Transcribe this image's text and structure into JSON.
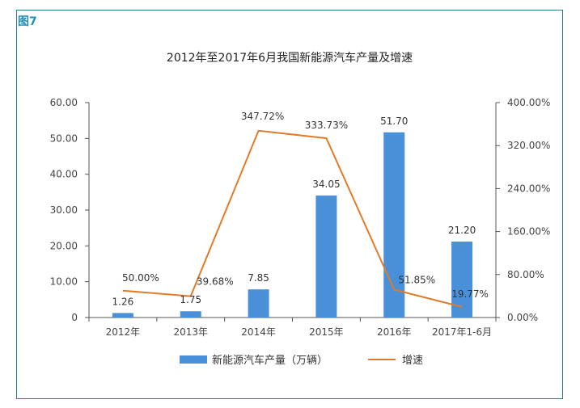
{
  "figure_label": "图7",
  "chart_data": {
    "type": "bar",
    "title": "2012年至2017年6月我国新能源汽车产量及增速",
    "categories": [
      "2012年",
      "2013年",
      "2014年",
      "2015年",
      "2016年",
      "2017年1-6月"
    ],
    "series": [
      {
        "name": "新能源汽车产量（万辆）",
        "type": "bar",
        "axis": "left",
        "color": "#4a90d9",
        "values": [
          1.26,
          1.75,
          7.85,
          34.05,
          51.7,
          21.2
        ],
        "labels": [
          "1.26",
          "1.75",
          "7.85",
          "34.05",
          "51.70",
          "21.20"
        ]
      },
      {
        "name": "增速",
        "type": "line",
        "axis": "right",
        "color": "#e07b2a",
        "values": [
          50.0,
          39.68,
          347.72,
          333.73,
          51.85,
          19.77
        ],
        "labels": [
          "50.00%",
          "39.68%",
          "347.72%",
          "333.73%",
          "51.85%",
          "19.77%"
        ]
      }
    ],
    "y_left": {
      "ylim": [
        0,
        60
      ],
      "ticks": [
        "0",
        "10.00",
        "20.00",
        "30.00",
        "40.00",
        "50.00",
        "60.00"
      ]
    },
    "y_right": {
      "ylim": [
        0,
        400
      ],
      "ticks": [
        "0.00%",
        "80.00%",
        "160.00%",
        "240.00%",
        "320.00%",
        "400.00%"
      ]
    },
    "legend_position": "bottom",
    "grid": false
  }
}
